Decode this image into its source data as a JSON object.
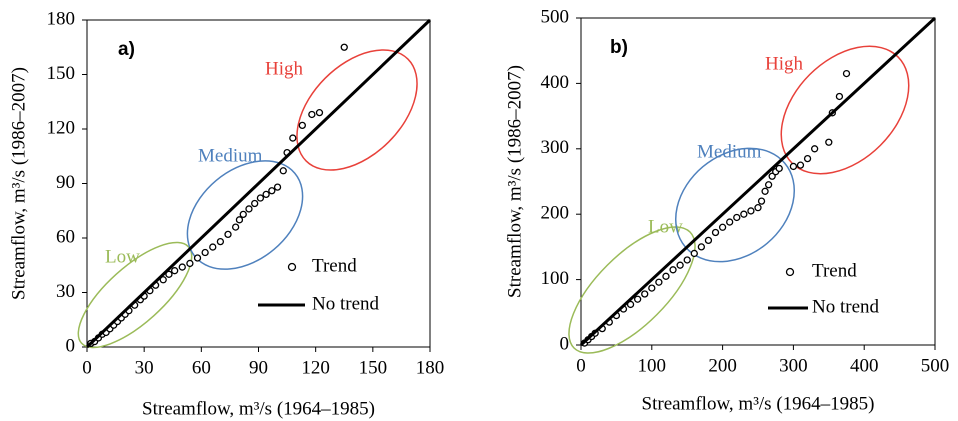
{
  "chart_data": [
    {
      "type": "scatter",
      "panel_label": "a)",
      "x_label": "Streamflow, m³/s (1964–1985)",
      "y_label": "Streamflow, m³/s (1986–2007)",
      "xlim": [
        0,
        180
      ],
      "ylim": [
        0,
        180
      ],
      "xticks": [
        0,
        30,
        60,
        90,
        120,
        150,
        180
      ],
      "yticks": [
        0,
        30,
        60,
        90,
        120,
        150,
        180
      ],
      "series": [
        {
          "name": "Trend",
          "kind": "scatter",
          "color": "#000000",
          "x": [
            2,
            4,
            6,
            8,
            10,
            12,
            14,
            16,
            18,
            20,
            22,
            25,
            28,
            30,
            33,
            36,
            40,
            43,
            46,
            50,
            54,
            58,
            62,
            66,
            70,
            74,
            78,
            80,
            82,
            85,
            88,
            91,
            94,
            97,
            100,
            103,
            105,
            108,
            113,
            118,
            122,
            135
          ],
          "values": [
            2,
            3,
            5,
            7,
            8,
            10,
            12,
            14,
            16,
            18,
            20,
            23,
            26,
            28,
            31,
            34,
            37,
            40,
            42,
            44,
            46,
            49,
            52,
            55,
            58,
            62,
            66,
            70,
            73,
            76,
            79,
            82,
            84,
            86,
            88,
            97,
            107,
            115,
            122,
            128,
            129,
            165
          ]
        },
        {
          "name": "No trend",
          "kind": "line",
          "color": "#000000",
          "x": [
            0,
            180
          ],
          "values": [
            0,
            180
          ]
        }
      ],
      "annotations": [
        {
          "text": "Low",
          "color": "#9bbb59"
        },
        {
          "text": "Medium",
          "color": "#4f81bd"
        },
        {
          "text": "High",
          "color": "#e8413a"
        }
      ]
    },
    {
      "type": "scatter",
      "panel_label": "b)",
      "x_label": "Streamflow, m³/s (1964–1985)",
      "y_label": "Streamflow, m³/s (1986–2007)",
      "xlim": [
        0,
        500
      ],
      "ylim": [
        0,
        500
      ],
      "xticks": [
        0,
        100,
        200,
        300,
        400,
        500
      ],
      "yticks": [
        0,
        100,
        200,
        300,
        400,
        500
      ],
      "series": [
        {
          "name": "Trend",
          "kind": "scatter",
          "color": "#000000",
          "x": [
            5,
            10,
            15,
            20,
            30,
            40,
            50,
            60,
            70,
            80,
            90,
            100,
            110,
            120,
            130,
            140,
            150,
            160,
            170,
            180,
            190,
            200,
            210,
            220,
            230,
            240,
            250,
            255,
            260,
            265,
            270,
            275,
            280,
            300,
            310,
            320,
            330,
            350,
            355,
            365,
            375
          ],
          "values": [
            3,
            8,
            13,
            18,
            25,
            35,
            45,
            55,
            62,
            70,
            78,
            87,
            96,
            105,
            115,
            122,
            130,
            140,
            150,
            160,
            172,
            180,
            188,
            195,
            200,
            205,
            210,
            220,
            235,
            245,
            258,
            265,
            270,
            273,
            275,
            285,
            300,
            310,
            355,
            380,
            415
          ]
        },
        {
          "name": "No trend",
          "kind": "line",
          "color": "#000000",
          "x": [
            0,
            500
          ],
          "values": [
            0,
            500
          ]
        }
      ],
      "annotations": [
        {
          "text": "Low",
          "color": "#9bbb59"
        },
        {
          "text": "Medium",
          "color": "#4f81bd"
        },
        {
          "text": "High",
          "color": "#e8413a"
        }
      ]
    }
  ]
}
